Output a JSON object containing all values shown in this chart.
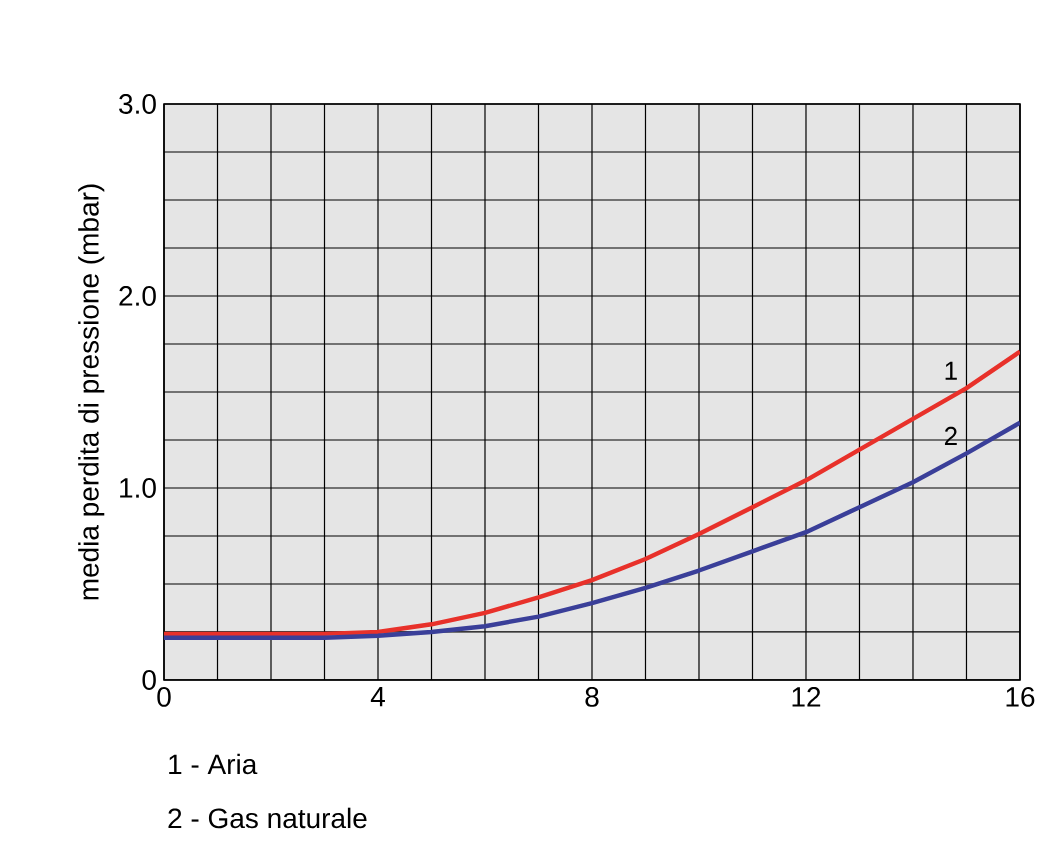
{
  "chart_data": {
    "type": "line",
    "ylabel": "media perdita di pressione (mbar)",
    "xlim": [
      0,
      16
    ],
    "ylim": [
      0,
      3
    ],
    "xticks": [
      0,
      {
        "value": 1,
        "label": null
      },
      {
        "value": 2,
        "label": null
      },
      {
        "value": 3,
        "label": null
      },
      4,
      {
        "value": 5,
        "label": null
      },
      {
        "value": 6,
        "label": null
      },
      {
        "value": 7,
        "label": null
      },
      8,
      {
        "value": 9,
        "label": null
      },
      {
        "value": 10,
        "label": null
      },
      {
        "value": 11,
        "label": null
      },
      12,
      {
        "value": 13,
        "label": null
      },
      {
        "value": 14,
        "label": null
      },
      {
        "value": 15,
        "label": null
      },
      16
    ],
    "yticks": [
      0,
      {
        "value": 0.25,
        "label": null
      },
      {
        "value": 0.5,
        "label": null
      },
      {
        "value": 0.75,
        "label": null
      },
      {
        "value": 1,
        "label": "1.0"
      },
      {
        "value": 1.25,
        "label": null
      },
      {
        "value": 1.5,
        "label": null
      },
      {
        "value": 1.75,
        "label": null
      },
      {
        "value": 2,
        "label": "2.0"
      },
      {
        "value": 2.25,
        "label": null
      },
      {
        "value": 2.5,
        "label": null
      },
      {
        "value": 2.75,
        "label": null
      },
      {
        "value": 3,
        "label": "3.0"
      }
    ],
    "grid": true,
    "marker": "none",
    "line_style": "solid",
    "x": [
      0,
      2,
      3,
      4,
      5,
      6,
      7,
      8,
      9,
      10,
      11,
      12,
      13,
      14,
      15,
      16
    ],
    "series": [
      {
        "name": "1",
        "color": "#e8312a",
        "values": [
          0.24,
          0.24,
          0.24,
          0.25,
          0.29,
          0.35,
          0.43,
          0.52,
          0.63,
          0.76,
          0.9,
          1.04,
          1.2,
          1.36,
          1.52,
          1.71
        ]
      },
      {
        "name": "2",
        "color": "#3a3f99",
        "values": [
          0.22,
          0.22,
          0.22,
          0.23,
          0.25,
          0.28,
          0.33,
          0.4,
          0.48,
          0.57,
          0.67,
          0.77,
          0.9,
          1.03,
          1.18,
          1.34
        ]
      }
    ],
    "annotations": [
      "1 - Aria",
      "2 - Gas naturale"
    ]
  }
}
